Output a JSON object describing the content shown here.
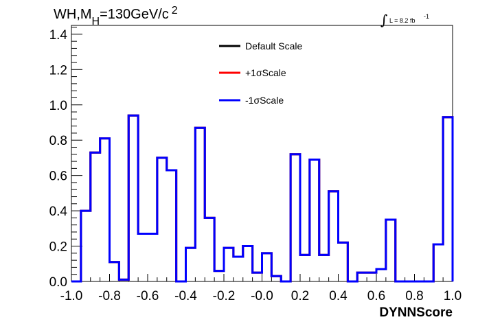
{
  "title": {
    "prefix": "WH,M",
    "subscript": "H",
    "middle": "=130GeV/c",
    "superscript": "2"
  },
  "lumi": {
    "integral": "∫",
    "text": "L = 8.2 fb",
    "superscript": "-1"
  },
  "chart_data": {
    "type": "line",
    "subtype": "step-histogram",
    "xlabel": "DYNNScore",
    "ylabel": "",
    "xlim": [
      -1.0,
      1.0
    ],
    "ylim": [
      0.0,
      1.45
    ],
    "grid": false,
    "legend_position": "top-center",
    "bin_edges": [
      -1.0,
      -0.95,
      -0.9,
      -0.85,
      -0.8,
      -0.75,
      -0.7,
      -0.65,
      -0.6,
      -0.55,
      -0.5,
      -0.45,
      -0.4,
      -0.35,
      -0.3,
      -0.25,
      -0.2,
      -0.15,
      -0.1,
      -0.05,
      0.0,
      0.05,
      0.1,
      0.15,
      0.2,
      0.25,
      0.3,
      0.35,
      0.4,
      0.45,
      0.5,
      0.55,
      0.6,
      0.65,
      0.7,
      0.75,
      0.8,
      0.85,
      0.9,
      0.95,
      1.0
    ],
    "x_ticks": [
      "-1.0",
      "-0.8",
      "-0.6",
      "-0.4",
      "-0.2",
      "-0.0",
      "0.2",
      "0.4",
      "0.6",
      "0.8",
      "1.0"
    ],
    "x_tick_values": [
      -1.0,
      -0.8,
      -0.6,
      -0.4,
      -0.2,
      0.0,
      0.2,
      0.4,
      0.6,
      0.8,
      1.0
    ],
    "y_ticks": [
      "0.0",
      "0.2",
      "0.4",
      "0.6",
      "0.8",
      "1.0",
      "1.2",
      "1.4"
    ],
    "y_tick_values": [
      0.0,
      0.2,
      0.4,
      0.6,
      0.8,
      1.0,
      1.2,
      1.4
    ],
    "series": [
      {
        "name": "Default Scale",
        "color": "#000000",
        "values": [
          0.0,
          0.4,
          0.73,
          0.81,
          0.11,
          0.01,
          0.94,
          0.27,
          0.27,
          0.7,
          0.63,
          0.0,
          0.19,
          0.87,
          0.36,
          0.06,
          0.19,
          0.14,
          0.2,
          0.05,
          0.16,
          0.03,
          0.0,
          0.72,
          0.15,
          0.69,
          0.15,
          0.51,
          0.22,
          0.0,
          0.05,
          0.05,
          0.07,
          0.35,
          0.0,
          0.0,
          0.0,
          0.0,
          0.21,
          0.93
        ]
      },
      {
        "name": "+1σScale",
        "color": "#ff0000",
        "values": [
          0.0,
          0.4,
          0.73,
          0.81,
          0.11,
          0.01,
          0.94,
          0.27,
          0.27,
          0.7,
          0.63,
          0.0,
          0.19,
          0.87,
          0.36,
          0.06,
          0.19,
          0.14,
          0.2,
          0.05,
          0.16,
          0.03,
          0.0,
          0.72,
          0.15,
          0.69,
          0.15,
          0.51,
          0.22,
          0.0,
          0.05,
          0.05,
          0.07,
          0.35,
          0.0,
          0.0,
          0.0,
          0.0,
          0.21,
          0.93
        ]
      },
      {
        "name": "-1σScale",
        "color": "#0000ff",
        "values": [
          0.0,
          0.4,
          0.73,
          0.81,
          0.11,
          0.01,
          0.94,
          0.27,
          0.27,
          0.7,
          0.63,
          0.0,
          0.19,
          0.87,
          0.36,
          0.06,
          0.19,
          0.14,
          0.2,
          0.05,
          0.16,
          0.03,
          0.0,
          0.72,
          0.15,
          0.69,
          0.15,
          0.51,
          0.22,
          0.0,
          0.05,
          0.05,
          0.07,
          0.35,
          0.0,
          0.0,
          0.0,
          0.0,
          0.21,
          0.93
        ]
      }
    ]
  }
}
